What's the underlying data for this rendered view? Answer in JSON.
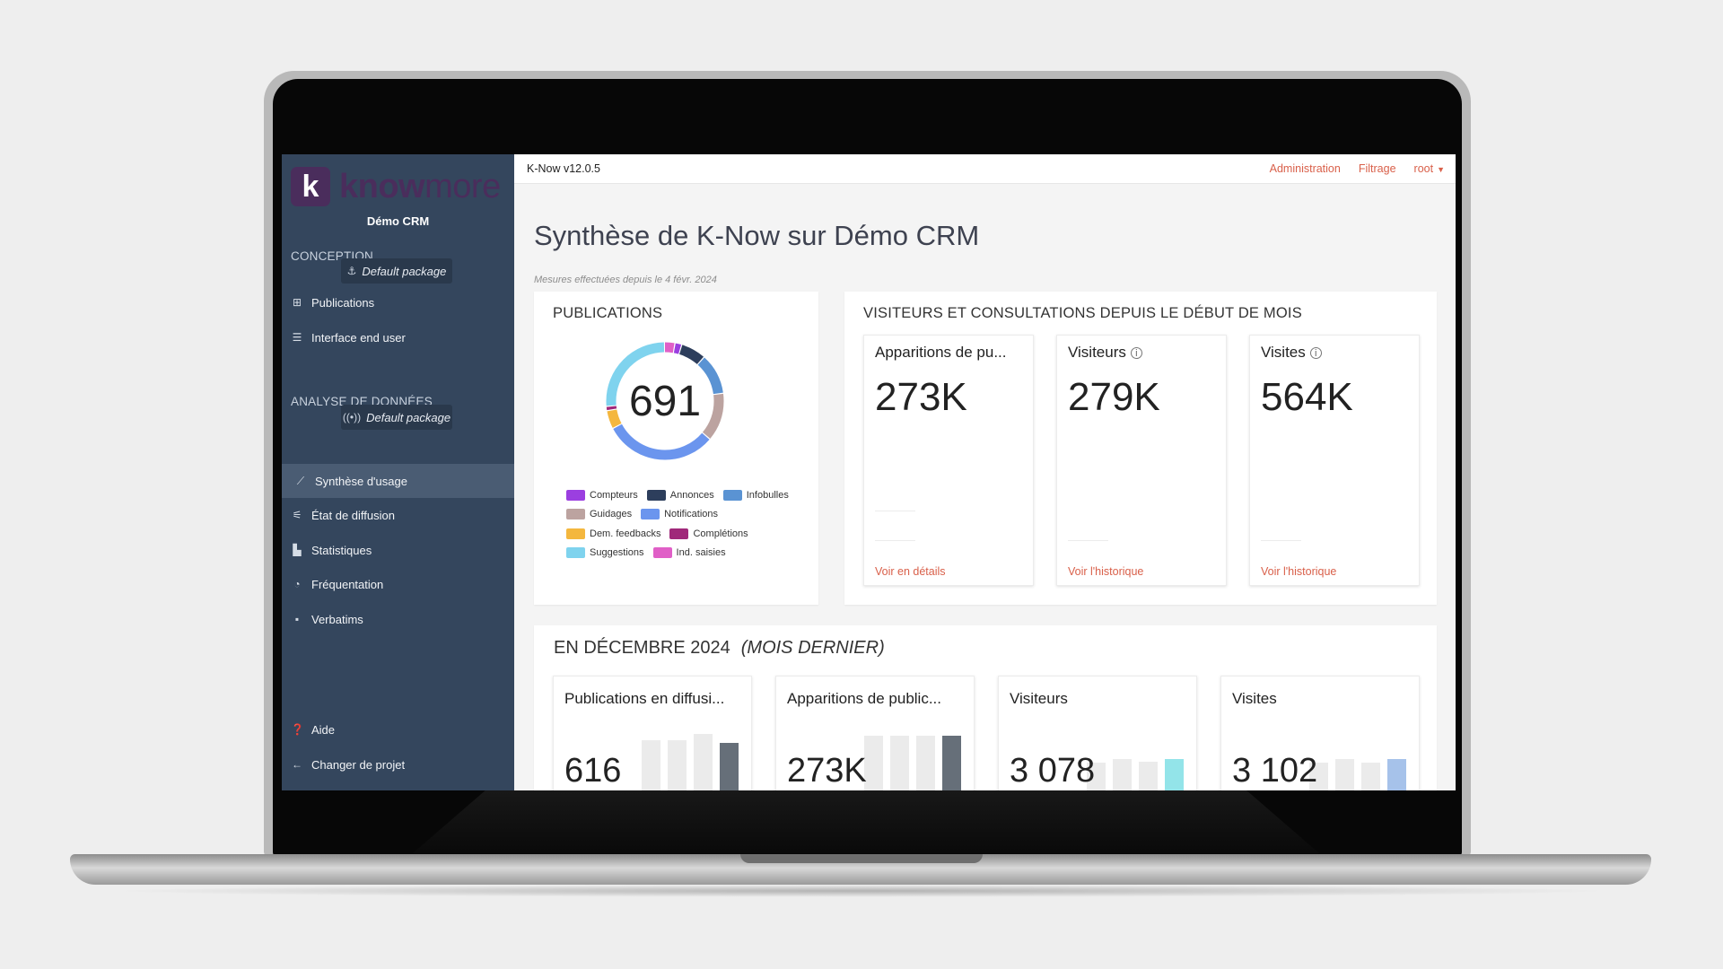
{
  "app": {
    "version": "K-Now v12.0.5",
    "logo_know": "know",
    "logo_more": "more",
    "logo_letter": "k"
  },
  "topnav": {
    "admin": "Administration",
    "filter": "Filtrage",
    "user": "root"
  },
  "sidebar": {
    "project": "Démo CRM",
    "conception_title": "CONCEPTION",
    "conception_package": "Default package",
    "conception_items": [
      {
        "label": "Publications",
        "icon": "grid-icon"
      },
      {
        "label": "Interface end user",
        "icon": "list-icon"
      }
    ],
    "analysis_title": "ANALYSE DE DONNÉES",
    "analysis_package": "Default package",
    "analysis_items": [
      {
        "label": "Synthèse d'usage",
        "icon": "chart-line-icon",
        "active": true
      },
      {
        "label": "État de diffusion",
        "icon": "broadcast-icon"
      },
      {
        "label": "Statistiques",
        "icon": "bar-chart-icon"
      },
      {
        "label": "Fréquentation",
        "icon": "gauge-icon"
      },
      {
        "label": "Verbatims",
        "icon": "comment-icon"
      }
    ],
    "bottom_items": [
      {
        "label": "Aide",
        "icon": "help-icon"
      },
      {
        "label": "Changer de projet",
        "icon": "arrow-left-icon"
      }
    ]
  },
  "main": {
    "title": "Synthèse de K-Now sur Démo CRM",
    "subtitle": "Mesures effectuées depuis le 4 févr. 2024",
    "publications": {
      "title": "PUBLICATIONS",
      "total": "691",
      "legend": [
        {
          "label": "Compteurs",
          "color": "#9b3fe0"
        },
        {
          "label": "Annonces",
          "color": "#2d3e5c"
        },
        {
          "label": "Infobulles",
          "color": "#5a93d3"
        },
        {
          "label": "Guidages",
          "color": "#bca3a0"
        },
        {
          "label": "Notifications",
          "color": "#6b95ee"
        },
        {
          "label": "Dem. feedbacks",
          "color": "#f4b73e"
        },
        {
          "label": "Complétions",
          "color": "#a0287a"
        },
        {
          "label": "Suggestions",
          "color": "#7fd3ee"
        },
        {
          "label": "Ind. saisies",
          "color": "#e05fc7"
        }
      ]
    },
    "visitors_panel": {
      "title": "VISITEURS ET CONSULTATIONS DEPUIS LE DÉBUT DE MOIS",
      "cards": [
        {
          "title": "Apparitions de pu...",
          "value": "273K",
          "link": "Voir en détails",
          "info": false
        },
        {
          "title": "Visiteurs",
          "value": "279K",
          "link": "Voir l'historique",
          "info": true
        },
        {
          "title": "Visites",
          "value": "564K",
          "link": "Voir l'historique",
          "info": true
        }
      ]
    },
    "month": {
      "title": "EN DÉCEMBRE 2024",
      "title_suffix": "(MOIS DERNIER)",
      "cards": [
        {
          "title": "Publications en diffusi...",
          "value": "616",
          "bars": [
            0.86,
            0.86,
            0.95,
            0.83
          ],
          "accent": "#666f79"
        },
        {
          "title": "Apparitions de public...",
          "value": "273K",
          "bars": [
            0.92,
            0.92,
            0.92,
            0.92
          ],
          "accent": "#666f79"
        },
        {
          "title": "Visiteurs",
          "value": "3 078",
          "bars": [
            0.55,
            0.6,
            0.56,
            0.6
          ],
          "accent": "#93e4e9"
        },
        {
          "title": "Visites",
          "value": "3 102",
          "bars": [
            0.55,
            0.6,
            0.55,
            0.6
          ],
          "accent": "#a6c2ea"
        }
      ]
    }
  },
  "chart_data": {
    "type": "pie",
    "title": "PUBLICATIONS",
    "total": 691,
    "categories": [
      "Ind. saisies",
      "Compteurs",
      "Annonces",
      "Infobulles",
      "Guidages",
      "Notifications",
      "Dem. feedbacks",
      "Complétions",
      "Suggestions"
    ],
    "values": [
      20,
      13,
      48,
      78,
      92,
      215,
      35,
      8,
      182
    ],
    "legend_position": "bottom"
  }
}
